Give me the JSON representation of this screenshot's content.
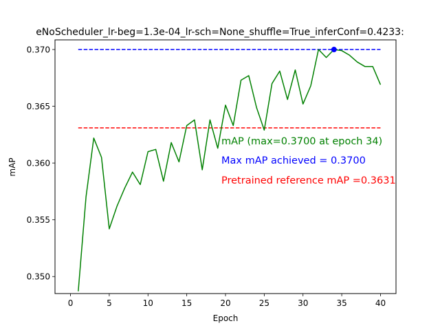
{
  "chart_data": {
    "type": "line",
    "title": "eNoScheduler_lr-beg=1.3e-04_lr-sch=None_shuffle=True_inferConf=0.4233:",
    "xlabel": "Epoch",
    "ylabel": "mAP",
    "xlim": [
      -2.0,
      42.0
    ],
    "ylim": [
      0.3485,
      0.37085
    ],
    "x_ticks": [
      0,
      5,
      10,
      15,
      20,
      25,
      30,
      35,
      40
    ],
    "x_tick_labels": [
      "0",
      "5",
      "10",
      "15",
      "20",
      "25",
      "30",
      "35",
      "40"
    ],
    "y_ticks": [
      0.35,
      0.355,
      0.36,
      0.365,
      0.37
    ],
    "y_tick_labels": [
      "0.350",
      "0.355",
      "0.360",
      "0.365",
      "0.370"
    ],
    "grid": false,
    "series": [
      {
        "color": "#008000",
        "style": "solid",
        "x": [
          1,
          2,
          3,
          4,
          5,
          6,
          7,
          8,
          9,
          10,
          11,
          12,
          13,
          14,
          15,
          16,
          17,
          18,
          19,
          20,
          21,
          22,
          23,
          24,
          25,
          26,
          27,
          28,
          29,
          30,
          31,
          32,
          33,
          34,
          35,
          36,
          37,
          38,
          39,
          40
        ],
        "values": [
          0.3487,
          0.357,
          0.3622,
          0.3605,
          0.3542,
          0.3562,
          0.3578,
          0.3592,
          0.3581,
          0.361,
          0.3612,
          0.3584,
          0.3618,
          0.3601,
          0.3633,
          0.3638,
          0.3594,
          0.3638,
          0.3613,
          0.3651,
          0.3633,
          0.3673,
          0.3677,
          0.3649,
          0.3629,
          0.367,
          0.3681,
          0.3656,
          0.3682,
          0.3652,
          0.3668,
          0.37,
          0.3693,
          0.37,
          0.3699,
          0.3695,
          0.3689,
          0.3685,
          0.3685,
          0.3669
        ]
      }
    ],
    "reference_lines": [
      {
        "y": 0.37,
        "color": "#0000ff",
        "style": "dashed",
        "x_from": 1,
        "x_to": 40
      },
      {
        "y": 0.3631,
        "color": "#ff0000",
        "style": "dashed",
        "x_from": 1,
        "x_to": 40
      }
    ],
    "highlight_point": {
      "x": 34,
      "y": 0.37,
      "color": "#0000ff"
    },
    "annotations": [
      {
        "text": "mAP (max=0.3700 at epoch 34)",
        "color": "#008000"
      },
      {
        "text": "Max mAP achieved = 0.3700",
        "color": "#0000ff"
      },
      {
        "text": "Pretrained reference mAP =0.3631",
        "color": "#ff0000"
      }
    ]
  }
}
